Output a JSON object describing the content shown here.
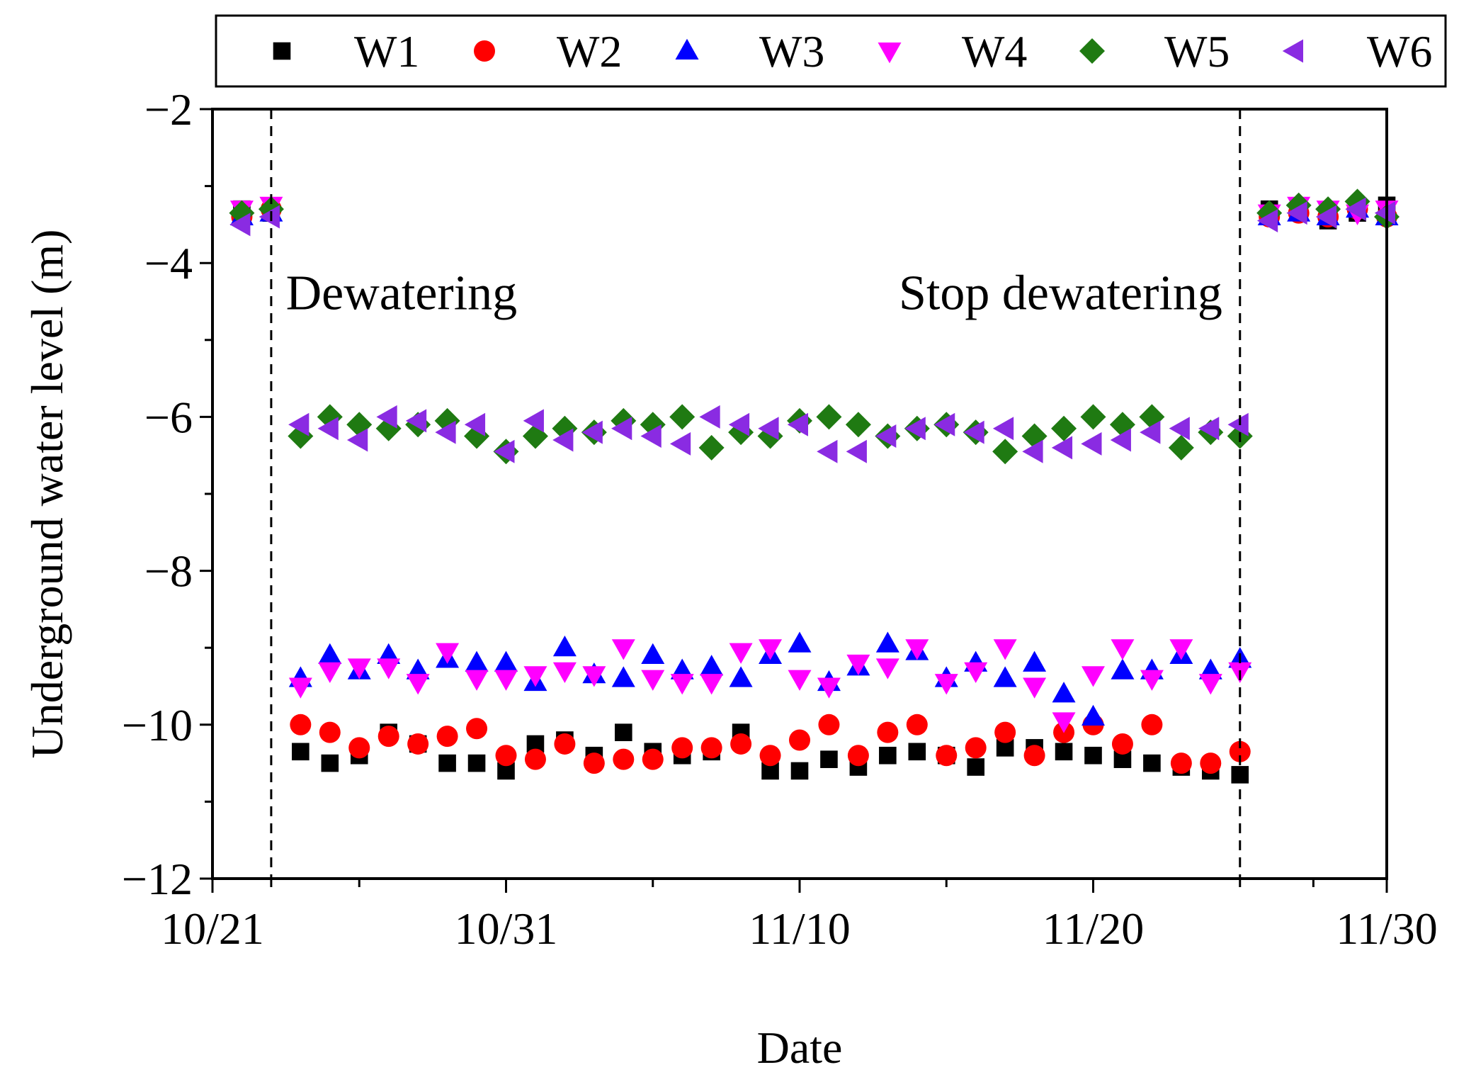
{
  "chart_data": {
    "type": "scatter",
    "title": "",
    "xlabel": "Date",
    "ylabel": "Underground water level (m)",
    "xlim": [
      0,
      40
    ],
    "ylim": [
      -12,
      -2
    ],
    "x_ticks": [
      0,
      10,
      20,
      30,
      40
    ],
    "x_tick_labels": [
      "10/21",
      "10/31",
      "11/10",
      "11/20",
      "11/30"
    ],
    "y_ticks": [
      -2,
      -4,
      -6,
      -8,
      -10,
      -12
    ],
    "y_tick_labels": [
      "−2",
      "−4",
      "−6",
      "−8",
      "−10",
      "−12"
    ],
    "x_minor_ticks": [
      2,
      5,
      15,
      25,
      35,
      37.5
    ],
    "y_minor_ticks": [
      -3,
      -5,
      -7,
      -9,
      -11
    ],
    "legend_position": "top",
    "vlines": [
      2,
      35
    ],
    "annotations": [
      {
        "text": "Dewatering",
        "x": 2.5,
        "y": -4.6
      },
      {
        "text": "Stop dewatering",
        "x": 34.4,
        "y": -4.6
      }
    ],
    "series": [
      {
        "name": "W1",
        "marker": "square",
        "color": "#000000",
        "x": [
          1,
          2,
          3,
          4,
          5,
          6,
          7,
          8,
          9,
          10,
          11,
          12,
          13,
          14,
          15,
          16,
          17,
          18,
          19,
          20,
          21,
          22,
          23,
          24,
          25,
          26,
          27,
          28,
          29,
          30,
          31,
          32,
          33,
          34,
          35,
          36,
          37,
          38,
          39,
          40
        ],
        "y": [
          -3.3,
          -3.35,
          -10.35,
          -10.5,
          -10.4,
          -10.1,
          -10.25,
          -10.5,
          -10.5,
          -10.6,
          -10.25,
          -10.2,
          -10.4,
          -10.1,
          -10.35,
          -10.4,
          -10.35,
          -10.1,
          -10.6,
          -10.6,
          -10.45,
          -10.55,
          -10.4,
          -10.35,
          -10.4,
          -10.55,
          -10.3,
          -10.3,
          -10.35,
          -10.4,
          -10.45,
          -10.5,
          -10.55,
          -10.6,
          -10.65,
          -3.3,
          -3.3,
          -3.45,
          -3.35,
          -3.25
        ]
      },
      {
        "name": "W2",
        "marker": "circle",
        "color": "#ff0000",
        "x": [
          1,
          2,
          3,
          4,
          5,
          6,
          7,
          8,
          9,
          10,
          11,
          12,
          13,
          14,
          15,
          16,
          17,
          18,
          19,
          20,
          21,
          22,
          23,
          24,
          25,
          26,
          27,
          28,
          29,
          30,
          31,
          32,
          33,
          34,
          35,
          36,
          37,
          38,
          39,
          40
        ],
        "y": [
          -3.4,
          -3.3,
          -10.0,
          -10.1,
          -10.3,
          -10.15,
          -10.25,
          -10.15,
          -10.05,
          -10.4,
          -10.45,
          -10.25,
          -10.5,
          -10.45,
          -10.45,
          -10.3,
          -10.3,
          -10.25,
          -10.4,
          -10.2,
          -10.0,
          -10.4,
          -10.1,
          -10.0,
          -10.4,
          -10.3,
          -10.1,
          -10.4,
          -10.1,
          -10.0,
          -10.25,
          -10.0,
          -10.5,
          -10.5,
          -10.35,
          -3.4,
          -3.35,
          -3.4,
          -3.3,
          -3.4
        ]
      },
      {
        "name": "W3",
        "marker": "triangle-up",
        "color": "#0000ff",
        "x": [
          1,
          2,
          3,
          4,
          5,
          6,
          7,
          8,
          9,
          10,
          11,
          12,
          13,
          14,
          15,
          16,
          17,
          18,
          19,
          20,
          21,
          22,
          23,
          24,
          25,
          26,
          27,
          28,
          29,
          30,
          31,
          32,
          33,
          34,
          35,
          36,
          37,
          38,
          39,
          40
        ],
        "y": [
          -3.4,
          -3.35,
          -9.4,
          -9.1,
          -9.3,
          -9.1,
          -9.3,
          -9.15,
          -9.2,
          -9.2,
          -9.45,
          -9.0,
          -9.35,
          -9.4,
          -9.1,
          -9.3,
          -9.25,
          -9.4,
          -9.1,
          -8.95,
          -9.45,
          -9.25,
          -8.95,
          -9.05,
          -9.4,
          -9.2,
          -9.4,
          -9.2,
          -9.6,
          -9.9,
          -9.3,
          -9.3,
          -9.1,
          -9.3,
          -9.15,
          -3.4,
          -3.35,
          -3.4,
          -3.3,
          -3.4
        ]
      },
      {
        "name": "W4",
        "marker": "triangle-down",
        "color": "#ff00ff",
        "x": [
          1,
          2,
          3,
          4,
          5,
          6,
          7,
          8,
          9,
          10,
          11,
          12,
          13,
          14,
          15,
          16,
          17,
          18,
          19,
          20,
          21,
          22,
          23,
          24,
          25,
          26,
          27,
          28,
          29,
          30,
          31,
          32,
          33,
          34,
          35,
          36,
          37,
          38,
          39,
          40
        ],
        "y": [
          -3.3,
          -3.25,
          -9.5,
          -9.3,
          -9.25,
          -9.25,
          -9.45,
          -9.05,
          -9.4,
          -9.4,
          -9.35,
          -9.3,
          -9.35,
          -9.0,
          -9.4,
          -9.45,
          -9.45,
          -9.05,
          -9.0,
          -9.4,
          -9.5,
          -9.2,
          -9.25,
          -9.0,
          -9.45,
          -9.3,
          -9.0,
          -9.5,
          -9.95,
          -9.35,
          -9.0,
          -9.4,
          -9.0,
          -9.45,
          -9.3,
          -3.35,
          -3.25,
          -3.3,
          -3.35,
          -3.3
        ]
      },
      {
        "name": "W5",
        "marker": "diamond",
        "color": "#1f7a12",
        "x": [
          1,
          2,
          3,
          4,
          5,
          6,
          7,
          8,
          9,
          10,
          11,
          12,
          13,
          14,
          15,
          16,
          17,
          18,
          19,
          20,
          21,
          22,
          23,
          24,
          25,
          26,
          27,
          28,
          29,
          30,
          31,
          32,
          33,
          34,
          35,
          36,
          37,
          38,
          39,
          40
        ],
        "y": [
          -3.35,
          -3.3,
          -6.25,
          -6.0,
          -6.1,
          -6.15,
          -6.1,
          -6.05,
          -6.25,
          -6.45,
          -6.25,
          -6.15,
          -6.2,
          -6.05,
          -6.1,
          -6.0,
          -6.4,
          -6.2,
          -6.25,
          -6.05,
          -6.0,
          -6.1,
          -6.25,
          -6.15,
          -6.1,
          -6.2,
          -6.45,
          -6.25,
          -6.15,
          -6.0,
          -6.1,
          -6.0,
          -6.4,
          -6.2,
          -6.25,
          -3.35,
          -3.25,
          -3.3,
          -3.2,
          -3.4
        ]
      },
      {
        "name": "W6",
        "marker": "triangle-left",
        "color": "#8a2be2",
        "x": [
          1,
          2,
          3,
          4,
          5,
          6,
          7,
          8,
          9,
          10,
          11,
          12,
          13,
          14,
          15,
          16,
          17,
          18,
          19,
          20,
          21,
          22,
          23,
          24,
          25,
          26,
          27,
          28,
          29,
          30,
          31,
          32,
          33,
          34,
          35,
          36,
          37,
          38,
          39,
          40
        ],
        "y": [
          -3.5,
          -3.4,
          -6.1,
          -6.15,
          -6.3,
          -6.0,
          -6.05,
          -6.2,
          -6.1,
          -6.45,
          -6.05,
          -6.3,
          -6.2,
          -6.15,
          -6.25,
          -6.35,
          -6.0,
          -6.1,
          -6.15,
          -6.1,
          -6.45,
          -6.45,
          -6.25,
          -6.15,
          -6.1,
          -6.2,
          -6.15,
          -6.45,
          -6.4,
          -6.35,
          -6.3,
          -6.2,
          -6.15,
          -6.15,
          -6.1,
          -3.45,
          -3.35,
          -3.4,
          -3.3,
          -3.35
        ]
      }
    ]
  }
}
